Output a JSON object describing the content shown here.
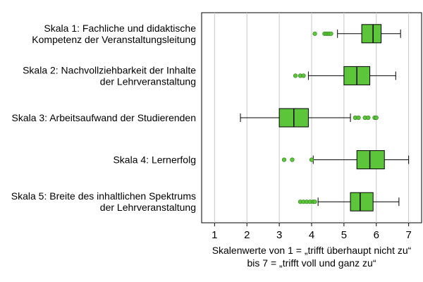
{
  "chart_data": {
    "type": "boxplot",
    "orientation": "horizontal",
    "xlabel": [
      "Skalenwerte von 1 = „trifft überhaupt nicht zu“",
      "bis 7 = „trifft voll und ganz zu“"
    ],
    "xlim": [
      0.6,
      7.4
    ],
    "xticks": [
      1,
      2,
      3,
      4,
      5,
      6,
      7
    ],
    "grid": "vertical",
    "box_color": "#5cc53a",
    "box_edge_color": "#000000",
    "series": [
      {
        "label": [
          "Skala 1: Fachliche und didaktische",
          "Kompetenz der Veranstaltungsleitung"
        ],
        "whisker_low": 4.8,
        "q1": 5.55,
        "median": 5.9,
        "q3": 6.15,
        "whisker_high": 6.75,
        "outliers": [
          4.1,
          4.4,
          4.45,
          4.5,
          4.55,
          4.6
        ]
      },
      {
        "label": [
          "Skala 2: Nachvollziehbarkeit der Inhalte",
          "der Lehrveranstaltung"
        ],
        "whisker_low": 3.9,
        "q1": 5.0,
        "median": 5.4,
        "q3": 5.8,
        "whisker_high": 6.6,
        "outliers": [
          3.5,
          3.65,
          3.75
        ]
      },
      {
        "label": [
          "Skala 3: Arbeitsaufwand der Studierenden"
        ],
        "whisker_low": 1.8,
        "q1": 3.0,
        "median": 3.45,
        "q3": 3.9,
        "whisker_high": 5.2,
        "outliers": [
          5.35,
          5.45,
          5.65,
          5.75,
          5.95,
          6.0
        ]
      },
      {
        "label": [
          "Skala 4: Lernerfolg"
        ],
        "whisker_low": 4.05,
        "q1": 5.4,
        "median": 5.8,
        "q3": 6.25,
        "whisker_high": 7.0,
        "outliers": [
          3.15,
          3.4,
          4.0
        ]
      },
      {
        "label": [
          "Skala 5: Breite des inhaltlichen Spektrums",
          "der Lehrveranstaltung"
        ],
        "whisker_low": 4.2,
        "q1": 5.2,
        "median": 5.5,
        "q3": 5.9,
        "whisker_high": 6.7,
        "outliers": [
          3.65,
          3.75,
          3.85,
          3.95,
          4.05,
          4.1
        ]
      }
    ]
  }
}
